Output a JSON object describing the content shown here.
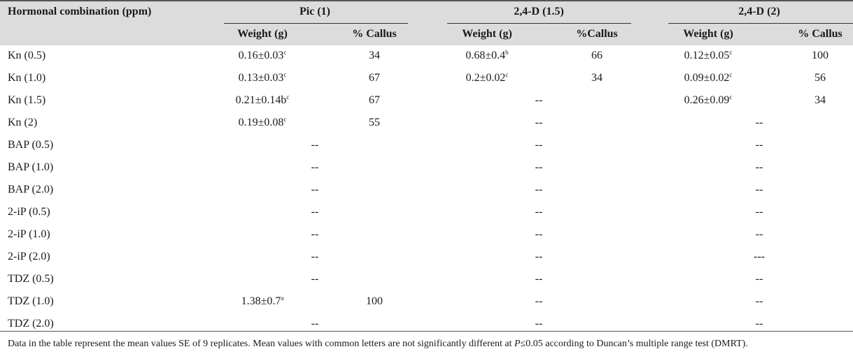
{
  "table": {
    "header": {
      "row_label": "Hormonal combination (ppm)",
      "groups": [
        "Pic (1)",
        "2,4-D (1.5)",
        "2,4-D (2)"
      ],
      "subheaders": [
        "Weight (g)",
        "% Callus",
        "Weight (g)",
        "%Callus",
        "Weight (g)",
        "% Callus"
      ]
    },
    "rows": [
      {
        "label": "Kn (0.5)",
        "g1w": "0.16±0.03",
        "g1s": "c",
        "g1c": "34",
        "g2w": "0.68±0.4",
        "g2s": "b",
        "g2c": "66",
        "g3w": "0.12±0.05",
        "g3s": "c",
        "g3c": "100"
      },
      {
        "label": "Kn (1.0)",
        "g1w": "0.13±0.03",
        "g1s": "c",
        "g1c": "67",
        "g2w": "0.2±0.02",
        "g2s": "c",
        "g2c": "34",
        "g3w": "0.09±0.02",
        "g3s": "c",
        "g3c": "56"
      },
      {
        "label": "Kn (1.5)",
        "g1w": "0.21±0.14b",
        "g1s": "c",
        "g1c": "67",
        "g2d": "--",
        "g3w": "0.26±0.09",
        "g3s": "c",
        "g3c": "34"
      },
      {
        "label": "Kn (2)",
        "g1w": "0.19±0.08",
        "g1s": "c",
        "g1c": "55",
        "g2d": "--",
        "g3d": "--"
      },
      {
        "label": "BAP (0.5)",
        "g1d": "--",
        "g2d": "--",
        "g3d": "--"
      },
      {
        "label": "BAP (1.0)",
        "g1d": "--",
        "g2d": "--",
        "g3d": "--"
      },
      {
        "label": "BAP (2.0)",
        "g1d": "--",
        "g2d": "--",
        "g3d": "--"
      },
      {
        "label": "2-iP (0.5)",
        "g1d": "--",
        "g2d": "--",
        "g3d": "--"
      },
      {
        "label": "2-iP (1.0)",
        "g1d": "--",
        "g2d": "--",
        "g3d": "--"
      },
      {
        "label": "2-iP (2.0)",
        "g1d": "--",
        "g2d": "--",
        "g3d": "---"
      },
      {
        "label": "TDZ (0.5)",
        "g1d": "--",
        "g2d": "--",
        "g3d": "--"
      },
      {
        "label": "TDZ (1.0)",
        "g1w": "1.38±0.7",
        "g1s": "a",
        "g1c": "100",
        "g2d": "--",
        "g3d": "--"
      },
      {
        "label": "TDZ (2.0)",
        "g1d": "--",
        "g2d": "--",
        "g3d": "--"
      }
    ]
  },
  "footnote": {
    "part1": "Data in the table represent the mean values SE of 9 replicates. Mean values with common letters are not significantly different at ",
    "italic": "P",
    "part2": "≤0.05 according to Duncan’s multiple range test (DMRT)."
  },
  "colors": {
    "header_bg": "#dcdcdc",
    "text": "#1a1a1a"
  }
}
